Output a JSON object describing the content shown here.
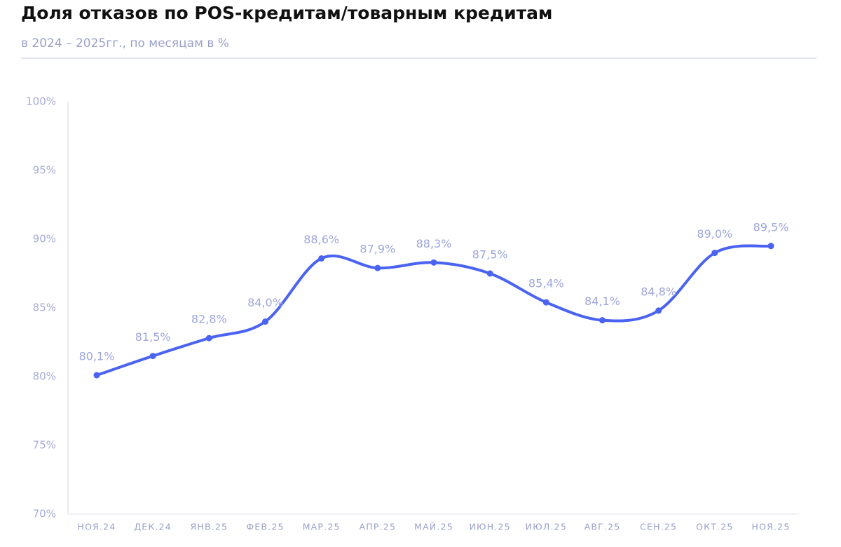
{
  "chart_data": {
    "type": "line",
    "title": "Доля отказов по POS-кредитам/товарным кредитам",
    "subtitle": "в 2024 – 2025гг., по месяцам в %",
    "categories": [
      "НОЯ.24",
      "ДЕК.24",
      "ЯНВ.25",
      "ФЕВ.25",
      "МАР.25",
      "АПР.25",
      "МАЙ.25",
      "ИЮН.25",
      "ИЮЛ.25",
      "АВГ.25",
      "СЕН.25",
      "ОКТ.25",
      "НОЯ.25"
    ],
    "values": [
      80.1,
      81.5,
      82.8,
      84.0,
      88.6,
      87.9,
      88.3,
      87.5,
      85.4,
      84.1,
      84.8,
      89.0,
      89.5
    ],
    "value_labels": [
      "80,1%",
      "81,5%",
      "82,8%",
      "84,0%",
      "88,6%",
      "87,9%",
      "88,3%",
      "87,5%",
      "85,4%",
      "84,1%",
      "84,8%",
      "89,0%",
      "89,5%"
    ],
    "color": "#4a63f0",
    "ylim": [
      70,
      100
    ],
    "yticks": [
      {
        "value": 70,
        "label": "70%"
      },
      {
        "value": 75,
        "label": "75%"
      },
      {
        "value": 80,
        "label": "80%"
      },
      {
        "value": 85,
        "label": "85%"
      },
      {
        "value": 90,
        "label": "90%"
      },
      {
        "value": 95,
        "label": "95%"
      },
      {
        "value": 100,
        "label": "100%"
      }
    ],
    "grid": false
  }
}
